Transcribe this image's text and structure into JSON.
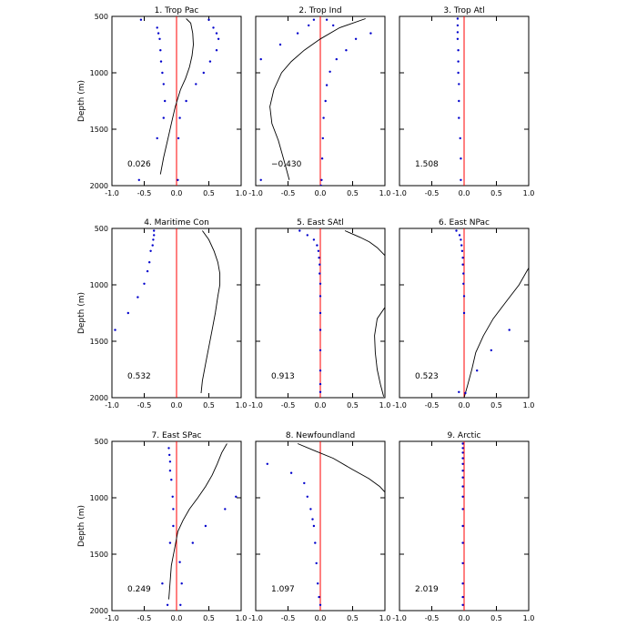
{
  "figure": {
    "y_axis_label": "Depth (m)",
    "x_tick_labels": [
      "-1.0",
      "-0.5",
      "0.0",
      "0.5",
      "1.0"
    ],
    "y_tick_labels": [
      "500",
      "1000",
      "1500",
      "2000"
    ],
    "colors": {
      "zero_line": "#ff0000",
      "dots": "#0000cc",
      "curve": "#000000",
      "axes": "#000000"
    }
  },
  "chart_data": [
    {
      "type": "line",
      "title": "1. Trop Pac",
      "annotation": "0.026",
      "xlim": [
        -1.0,
        1.0
      ],
      "ylim": [
        2000,
        500
      ],
      "ylabel": "Depth (m)",
      "series": [
        {
          "name": "curve",
          "x": [
            0.15,
            0.22,
            0.25,
            0.26,
            0.24,
            0.2,
            0.14,
            0.06,
            -0.02,
            -0.08,
            -0.14,
            -0.2,
            -0.25
          ],
          "y": [
            520,
            560,
            650,
            750,
            850,
            950,
            1050,
            1150,
            1300,
            1450,
            1600,
            1750,
            1900
          ]
        },
        {
          "name": "dots-left",
          "x": [
            -0.55,
            -0.3,
            -0.28,
            -0.26,
            -0.25,
            -0.24,
            -0.22,
            -0.2,
            -0.18,
            -0.2,
            -0.3,
            -0.58
          ],
          "y": [
            530,
            600,
            650,
            700,
            800,
            900,
            1000,
            1100,
            1250,
            1400,
            1580,
            1950
          ]
        },
        {
          "name": "dots-right",
          "x": [
            0.5,
            0.57,
            0.62,
            0.65,
            0.62,
            0.52,
            0.42,
            0.3,
            0.15,
            0.05,
            0.03,
            0.02
          ],
          "y": [
            530,
            600,
            650,
            700,
            800,
            900,
            1000,
            1100,
            1250,
            1400,
            1580,
            1950
          ]
        }
      ]
    },
    {
      "type": "line",
      "title": "2. Trop Ind",
      "annotation": "−0.430",
      "xlim": [
        -1.0,
        1.0
      ],
      "ylim": [
        2000,
        500
      ],
      "series": [
        {
          "name": "curve",
          "x": [
            0.7,
            0.3,
            0.0,
            -0.25,
            -0.45,
            -0.6,
            -0.72,
            -0.78,
            -0.75,
            -0.65,
            -0.55,
            -0.48
          ],
          "y": [
            520,
            600,
            700,
            800,
            900,
            1000,
            1150,
            1300,
            1450,
            1600,
            1800,
            1950
          ]
        },
        {
          "name": "dots-left",
          "x": [
            -0.1,
            -0.18,
            -0.35,
            -0.62,
            -0.92,
            -0.92
          ],
          "y": [
            530,
            580,
            650,
            750,
            880,
            1950
          ]
        },
        {
          "name": "dots-right",
          "x": [
            0.1,
            0.2,
            0.78,
            0.55,
            0.4,
            0.25,
            0.15,
            0.1,
            0.08,
            0.05,
            0.04,
            0.03,
            0.02,
            0.01
          ],
          "y": [
            530,
            580,
            650,
            700,
            800,
            880,
            990,
            1110,
            1250,
            1400,
            1580,
            1760,
            1950,
            2000
          ]
        }
      ]
    },
    {
      "type": "line",
      "title": "3. Trop Atl",
      "annotation": "1.508",
      "xlim": [
        -1.0,
        1.0
      ],
      "ylim": [
        2000,
        500
      ],
      "series": [
        {
          "name": "dots",
          "x": [
            -0.1,
            -0.1,
            -0.1,
            -0.1,
            -0.09,
            -0.09,
            -0.09,
            -0.08,
            -0.08,
            -0.08,
            -0.06,
            -0.05,
            -0.05
          ],
          "y": [
            520,
            580,
            640,
            700,
            800,
            900,
            1000,
            1100,
            1250,
            1400,
            1580,
            1760,
            1950
          ]
        }
      ]
    },
    {
      "type": "line",
      "title": "4. Maritime Con",
      "annotation": "0.532",
      "xlim": [
        -1.0,
        1.0
      ],
      "ylim": [
        2000,
        500
      ],
      "series": [
        {
          "name": "curve",
          "x": [
            0.4,
            0.5,
            0.58,
            0.64,
            0.67,
            0.67,
            0.64,
            0.6,
            0.55,
            0.5,
            0.45,
            0.4,
            0.38
          ],
          "y": [
            520,
            600,
            700,
            800,
            900,
            1000,
            1100,
            1250,
            1400,
            1550,
            1700,
            1850,
            1960
          ]
        },
        {
          "name": "dots",
          "x": [
            -0.35,
            -0.35,
            -0.36,
            -0.37,
            -0.4,
            -0.42,
            -0.45,
            -0.5,
            -0.6,
            -0.75,
            -0.95
          ],
          "y": [
            520,
            560,
            600,
            650,
            700,
            800,
            880,
            990,
            1110,
            1250,
            1400
          ]
        }
      ]
    },
    {
      "type": "line",
      "title": "5. East SAtl",
      "annotation": "0.913",
      "xlim": [
        -1.0,
        1.0
      ],
      "ylim": [
        2000,
        500
      ],
      "series": [
        {
          "name": "curve-upper",
          "x": [
            0.38,
            0.5,
            0.62,
            0.76,
            0.88,
            1.0
          ],
          "y": [
            520,
            550,
            580,
            620,
            670,
            740
          ]
        },
        {
          "name": "curve-lower",
          "x": [
            1.0,
            0.88,
            0.84,
            0.85,
            0.88,
            0.93,
            0.98
          ],
          "y": [
            1200,
            1300,
            1450,
            1600,
            1750,
            1880,
            1990
          ]
        },
        {
          "name": "dots",
          "x": [
            -0.32,
            -0.2,
            -0.1,
            -0.05,
            -0.03,
            -0.02,
            -0.01,
            -0.01,
            0.0,
            0.0,
            0.0,
            0.0,
            0.0,
            0.0,
            0.0,
            0.0
          ],
          "y": [
            520,
            560,
            600,
            650,
            700,
            760,
            820,
            900,
            990,
            1100,
            1250,
            1400,
            1580,
            1760,
            1880,
            1950
          ]
        }
      ]
    },
    {
      "type": "line",
      "title": "6. East NPac",
      "annotation": "0.523",
      "xlim": [
        -1.0,
        1.0
      ],
      "ylim": [
        2000,
        500
      ],
      "series": [
        {
          "name": "curve",
          "x": [
            1.0,
            0.85,
            0.65,
            0.45,
            0.3,
            0.18,
            0.12,
            0.05,
            0.0
          ],
          "y": [
            850,
            1000,
            1150,
            1300,
            1450,
            1600,
            1750,
            1900,
            2000
          ]
        },
        {
          "name": "dots",
          "x": [
            -0.12,
            -0.07,
            -0.05,
            -0.04,
            -0.03,
            -0.02,
            -0.02,
            -0.01,
            -0.01,
            0.0,
            0.0,
            0.7,
            0.42,
            0.2,
            -0.08,
            0.02
          ],
          "y": [
            520,
            560,
            600,
            650,
            700,
            760,
            820,
            900,
            990,
            1100,
            1250,
            1400,
            1580,
            1760,
            1950,
            1960
          ]
        }
      ]
    },
    {
      "type": "line",
      "title": "7. East SPac",
      "annotation": "0.249",
      "xlim": [
        -1.0,
        1.0
      ],
      "ylim": [
        2000,
        500
      ],
      "series": [
        {
          "name": "curve",
          "x": [
            0.78,
            0.7,
            0.63,
            0.55,
            0.45,
            0.33,
            0.2,
            0.1,
            0.02,
            -0.03,
            -0.08,
            -0.1,
            -0.12
          ],
          "y": [
            520,
            600,
            700,
            800,
            900,
            1000,
            1100,
            1200,
            1300,
            1450,
            1600,
            1750,
            1900
          ]
        },
        {
          "name": "dots-left",
          "x": [
            -0.12,
            -0.11,
            -0.1,
            -0.1,
            -0.08,
            -0.06,
            -0.05,
            -0.05,
            -0.1,
            -0.22,
            -0.14
          ],
          "y": [
            560,
            620,
            680,
            760,
            840,
            990,
            1100,
            1250,
            1400,
            1760,
            1950
          ]
        },
        {
          "name": "dots-right",
          "x": [
            0.92,
            0.75,
            0.45,
            0.25,
            0.05,
            0.08,
            0.06
          ],
          "y": [
            990,
            1100,
            1250,
            1400,
            1570,
            1760,
            1950
          ]
        }
      ]
    },
    {
      "type": "line",
      "title": "8. Newfoundland",
      "annotation": "1.097",
      "xlim": [
        -1.0,
        1.0
      ],
      "ylim": [
        2000,
        500
      ],
      "series": [
        {
          "name": "curve",
          "x": [
            -0.35,
            -0.1,
            0.2,
            0.5,
            0.75,
            0.92,
            1.0
          ],
          "y": [
            520,
            580,
            650,
            750,
            830,
            900,
            950
          ]
        },
        {
          "name": "dots",
          "x": [
            -0.82,
            -0.45,
            -0.25,
            -0.2,
            -0.15,
            -0.12,
            -0.1,
            -0.08,
            -0.06,
            -0.04,
            -0.02,
            0.0
          ],
          "y": [
            700,
            780,
            870,
            990,
            1100,
            1190,
            1250,
            1400,
            1580,
            1760,
            1880,
            1950
          ]
        }
      ]
    },
    {
      "type": "line",
      "title": "9. Arctic",
      "annotation": "2.019",
      "xlim": [
        -1.0,
        1.0
      ],
      "ylim": [
        2000,
        500
      ],
      "series": [
        {
          "name": "dots",
          "x": [
            -0.02,
            -0.02,
            -0.02,
            -0.02,
            -0.02,
            -0.02,
            -0.02,
            -0.02,
            -0.02,
            -0.02,
            -0.02,
            -0.02,
            -0.02,
            -0.02,
            -0.02,
            -0.02
          ],
          "y": [
            520,
            560,
            600,
            650,
            700,
            760,
            820,
            900,
            990,
            1100,
            1250,
            1400,
            1580,
            1760,
            1880,
            1950
          ]
        }
      ]
    }
  ]
}
